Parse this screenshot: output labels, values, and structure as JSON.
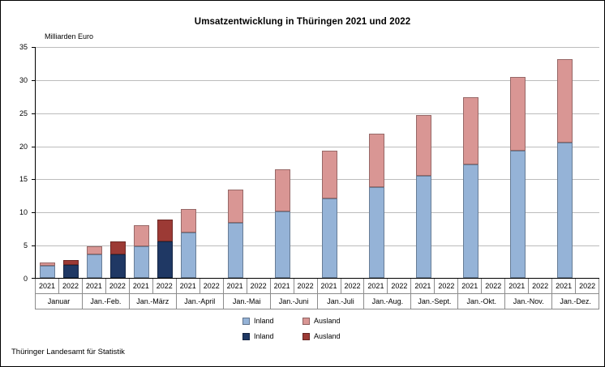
{
  "title": "Umsatzentwicklung in Thüringen 2021 und 2022",
  "footer": "Thüringer Landesamt für Statistik",
  "chart_data": {
    "type": "bar",
    "stacked": true,
    "title": "Umsatzentwicklung in Thüringen 2021 und 2022",
    "ylabel": "Milliarden Euro",
    "ylim": [
      0,
      35
    ],
    "ytick_step": 5,
    "grid": true,
    "legend_position": "bottom",
    "groups": [
      "Januar",
      "Jan.-Feb.",
      "Jan.-März",
      "Jan.-April",
      "Jan.-Mai",
      "Jan.-Juni",
      "Jan.-Juli",
      "Jan.-Aug.",
      "Jan.-Sept.",
      "Jan.-Okt.",
      "Jan.-Nov.",
      "Jan.-Dez."
    ],
    "year_labels": [
      "2021",
      "2022"
    ],
    "series": [
      {
        "name": "Inland",
        "year": "2021",
        "color": "#95B3D7",
        "values": [
          1.8,
          3.6,
          4.8,
          6.9,
          8.3,
          10.0,
          12.0,
          13.7,
          15.4,
          17.1,
          19.2,
          20.4
        ]
      },
      {
        "name": "Ausland",
        "year": "2021",
        "color": "#D99694",
        "values": [
          0.5,
          1.2,
          3.2,
          3.6,
          5.0,
          6.4,
          7.2,
          8.1,
          9.2,
          10.2,
          11.1,
          12.6
        ]
      },
      {
        "name": "Inland",
        "year": "2022",
        "color": "#1F3864",
        "values": [
          2.0,
          3.5,
          5.5,
          null,
          null,
          null,
          null,
          null,
          null,
          null,
          null,
          null
        ]
      },
      {
        "name": "Ausland",
        "year": "2022",
        "color": "#9C3A35",
        "values": [
          0.7,
          2.0,
          3.3,
          null,
          null,
          null,
          null,
          null,
          null,
          null,
          null,
          null
        ]
      }
    ]
  }
}
